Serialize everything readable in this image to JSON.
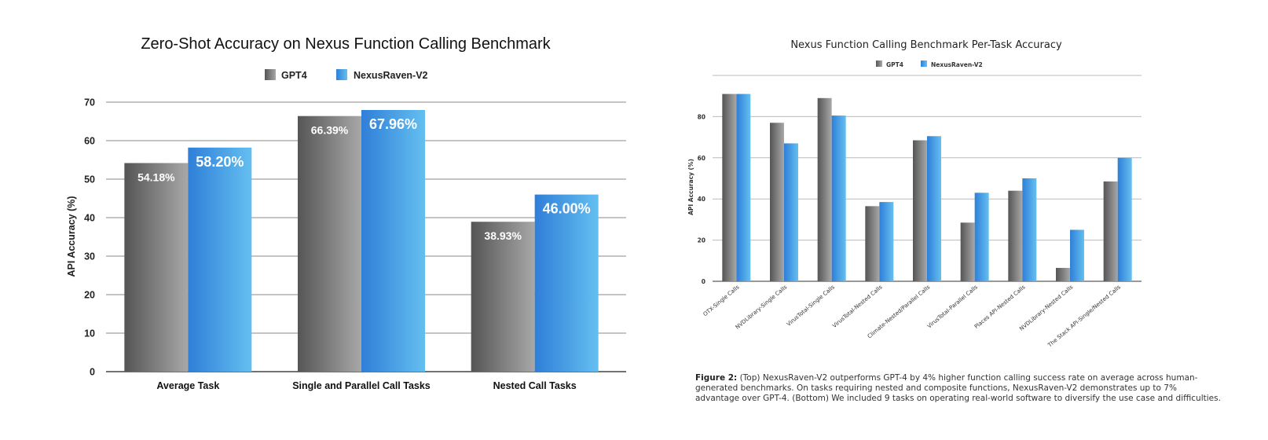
{
  "chart_data": [
    {
      "type": "bar",
      "title": "Zero-Shot Accuracy on Nexus Function Calling Benchmark",
      "ylabel": "API Accuracy (%)",
      "xlabel": "",
      "ylim": [
        0,
        70
      ],
      "yticks": [
        0,
        10,
        20,
        30,
        40,
        50,
        60,
        70
      ],
      "grid": true,
      "legend_position": "top-center",
      "categories": [
        "Average Task",
        "Single and Parallel Call Tasks",
        "Nested Call Tasks"
      ],
      "series": [
        {
          "name": "GPT4",
          "values": [
            54.18,
            66.39,
            38.93
          ],
          "labels": [
            "54.18%",
            "66.39%",
            "38.93%"
          ],
          "color_start": "#555555",
          "color_end": "#a8a8a8"
        },
        {
          "name": "NexusRaven-V2",
          "values": [
            58.2,
            67.96,
            46.0
          ],
          "labels": [
            "58.20%",
            "67.96%",
            "46.00%"
          ],
          "color_start": "#2f7fd8",
          "color_end": "#64bff0"
        }
      ]
    },
    {
      "type": "bar",
      "title": "Nexus Function Calling Benchmark Per-Task Accuracy",
      "ylabel": "API Accuracy (%)",
      "xlabel": "",
      "ylim": [
        0,
        100
      ],
      "yticks": [
        0,
        20,
        40,
        60,
        80
      ],
      "grid": true,
      "legend_position": "top-center",
      "categories": [
        "OTX-Single Calls",
        "NVDLibrary-Single Calls",
        "VirusTotal-Single Calls",
        "VirusTotal-Nested Calls",
        "Climate-Nested/Parallel Calls",
        "VirusTotal-Parallel Calls",
        "Places API-Nested Calls",
        "NVDLibrary-Nested Calls",
        "The Stack API-Single/Nested Calls"
      ],
      "series": [
        {
          "name": "GPT4",
          "values": [
            91,
            77,
            89,
            36.5,
            68.5,
            28.5,
            44,
            6.5,
            48.5
          ],
          "color_start": "#555555",
          "color_end": "#a8a8a8"
        },
        {
          "name": "NexusRaven-V2",
          "values": [
            91,
            67,
            80.5,
            38.5,
            70.5,
            43,
            50,
            25,
            60
          ],
          "color_start": "#2f7fd8",
          "color_end": "#64bff0"
        }
      ]
    }
  ],
  "caption": {
    "label": "Figure 2:",
    "text": "(Top) NexusRaven-V2 outperforms GPT-4 by 4% higher function calling success rate on average across human-generated benchmarks. On tasks requiring nested and composite functions, NexusRaven-V2 demonstrates up to 7% advantage over GPT-4. (Bottom) We included 9 tasks on operating real-world software to diversify the use case and difficulties."
  }
}
